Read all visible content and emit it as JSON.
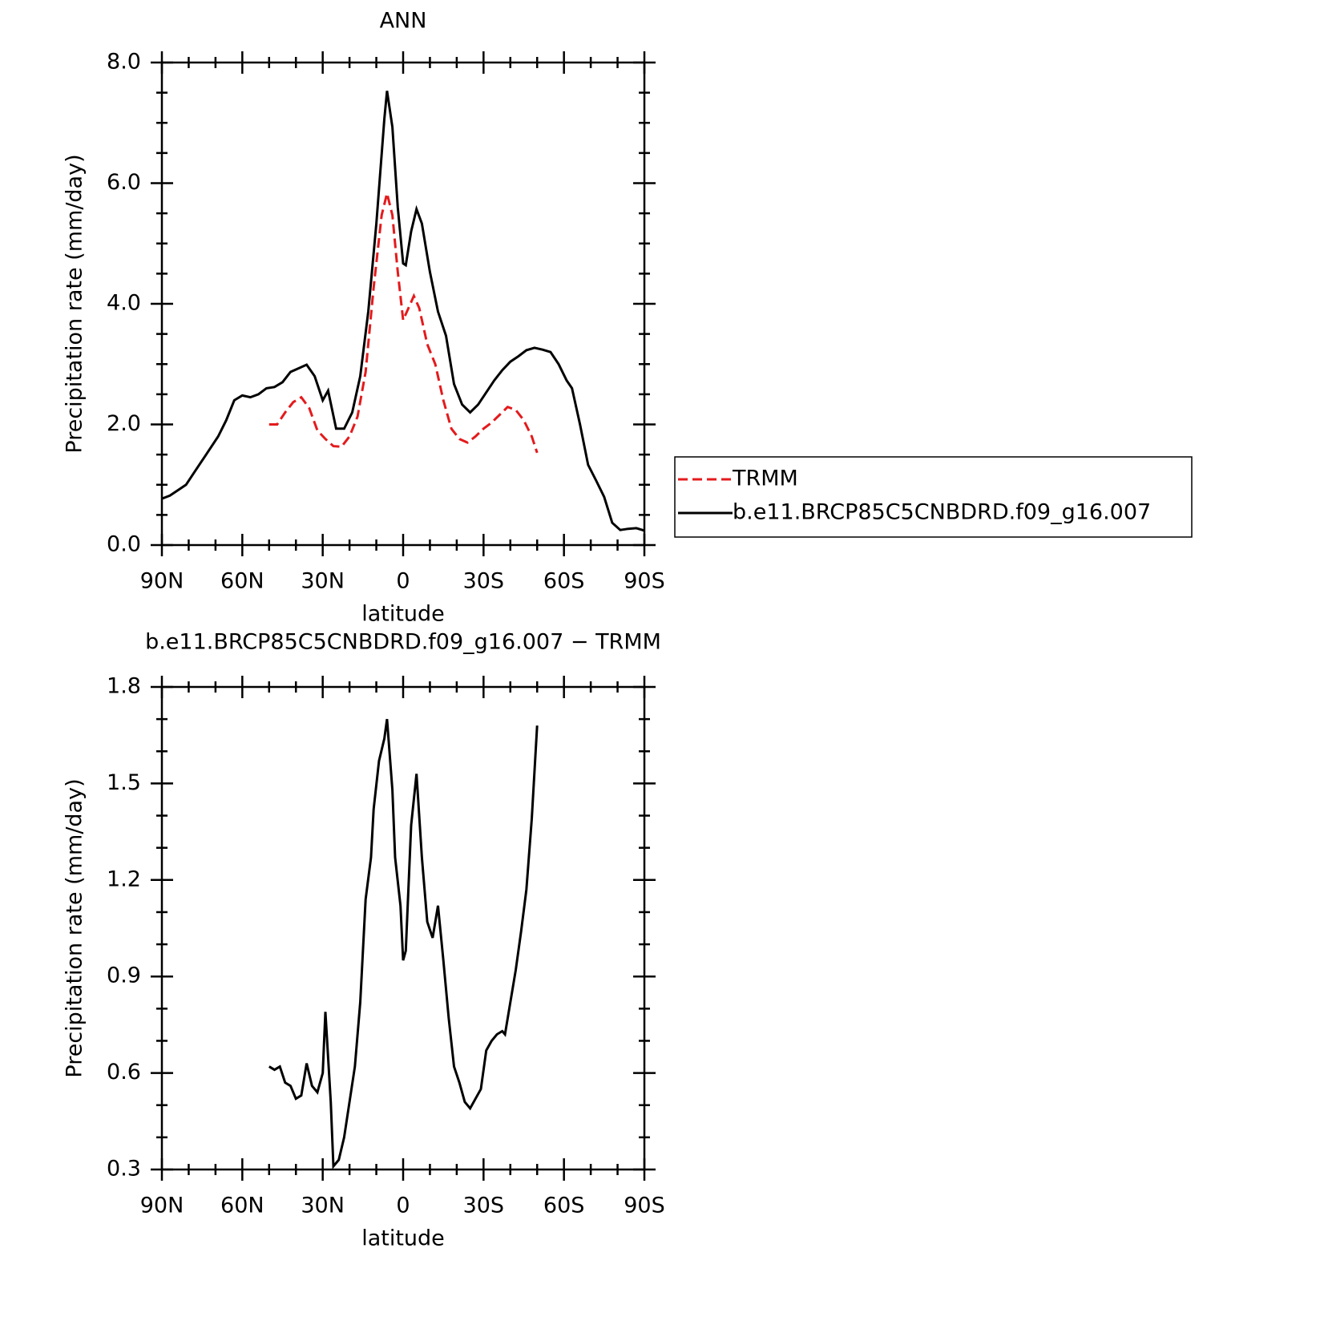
{
  "chart_data": [
    {
      "type": "line",
      "title": "ANN",
      "x_label": "latitude",
      "y_label": "Precipitation rate (mm/day)",
      "xlim": [
        90,
        -90
      ],
      "xticks": [
        {
          "value": 90,
          "label": "90N"
        },
        {
          "value": 60,
          "label": "60N"
        },
        {
          "value": 30,
          "label": "30N"
        },
        0,
        {
          "value": -30,
          "label": "30S"
        },
        {
          "value": -60,
          "label": "60S"
        },
        {
          "value": -90,
          "label": "90S"
        }
      ],
      "ylim": [
        0,
        8
      ],
      "yticks": [
        {
          "value": 0,
          "label": "0.0"
        },
        {
          "value": 2,
          "label": "2.0"
        },
        {
          "value": 4,
          "label": "4.0"
        },
        {
          "value": 6,
          "label": "6.0"
        },
        {
          "value": 8,
          "label": "8.0"
        }
      ],
      "legend": "right-outside",
      "series": [
        {
          "name": "TRMM",
          "color": "#e41a1c",
          "line_style": "dashed",
          "x": [
            50,
            47,
            44,
            41,
            38,
            35,
            32,
            29,
            26,
            23,
            20,
            17,
            14,
            11,
            8,
            6,
            4,
            2,
            0,
            -2,
            -4,
            -6,
            -9,
            -12,
            -15,
            -18,
            -21,
            -24,
            -27,
            -30,
            -33,
            -36,
            -39,
            -42,
            -45,
            -48,
            -50
          ],
          "values": [
            2.0,
            2.0,
            2.2,
            2.37,
            2.45,
            2.27,
            1.9,
            1.76,
            1.64,
            1.63,
            1.8,
            2.13,
            2.87,
            4.27,
            5.47,
            5.83,
            5.47,
            4.53,
            3.73,
            3.93,
            4.13,
            3.93,
            3.33,
            3.0,
            2.4,
            1.93,
            1.76,
            1.7,
            1.8,
            1.93,
            2.03,
            2.16,
            2.29,
            2.24,
            2.07,
            1.8,
            1.53
          ]
        },
        {
          "name": "b.e11.BRCP85C5CNBDRD.f09_g16.007",
          "color": "#000000",
          "line_style": "solid",
          "x": [
            90,
            87,
            84,
            81,
            78,
            75,
            72,
            69,
            66,
            63,
            60,
            57,
            54,
            51,
            48,
            45,
            42,
            39,
            36,
            33,
            30,
            28,
            25,
            22,
            19,
            16,
            13,
            10,
            7,
            6,
            4,
            2,
            0,
            -1,
            -3,
            -5,
            -7,
            -10,
            -13,
            -16,
            -19,
            -22,
            -25,
            -28,
            -31,
            -34,
            -37,
            -40,
            -43,
            -46,
            -49,
            -52,
            -55,
            -58,
            -61,
            -63,
            -66,
            -69,
            -72,
            -75,
            -78,
            -81,
            -84,
            -87,
            -90
          ],
          "values": [
            0.77,
            0.82,
            0.91,
            1.0,
            1.2,
            1.4,
            1.6,
            1.8,
            2.07,
            2.4,
            2.48,
            2.45,
            2.5,
            2.6,
            2.62,
            2.7,
            2.87,
            2.93,
            2.99,
            2.8,
            2.4,
            2.56,
            1.93,
            1.93,
            2.2,
            2.8,
            3.87,
            5.33,
            7.07,
            7.53,
            6.93,
            5.6,
            4.67,
            4.64,
            5.2,
            5.57,
            5.33,
            4.53,
            3.87,
            3.47,
            2.67,
            2.33,
            2.2,
            2.33,
            2.53,
            2.73,
            2.9,
            3.04,
            3.13,
            3.23,
            3.27,
            3.24,
            3.2,
            3.0,
            2.73,
            2.6,
            2.0,
            1.33,
            1.07,
            0.8,
            0.37,
            0.25,
            0.27,
            0.28,
            0.24
          ]
        }
      ]
    },
    {
      "type": "line",
      "title": "b.e11.BRCP85C5CNBDRD.f09_g16.007 − TRMM",
      "x_label": "latitude",
      "y_label": "Precipitation rate (mm/day)",
      "xlim": [
        90,
        -90
      ],
      "xticks": [
        {
          "value": 90,
          "label": "90N"
        },
        {
          "value": 60,
          "label": "60N"
        },
        {
          "value": 30,
          "label": "30N"
        },
        0,
        {
          "value": -30,
          "label": "30S"
        },
        {
          "value": -60,
          "label": "60S"
        },
        {
          "value": -90,
          "label": "90S"
        }
      ],
      "ylim": [
        0.3,
        1.8
      ],
      "yticks": [
        0.3,
        0.6,
        0.9,
        1.2,
        1.5,
        1.8
      ],
      "series": [
        {
          "color": "#000000",
          "line_style": "solid",
          "x": [
            50,
            48,
            46,
            44,
            42,
            40,
            38,
            36,
            34,
            32,
            30,
            29,
            27,
            26,
            24,
            22,
            20,
            18,
            16,
            14,
            12,
            11,
            9,
            7,
            6,
            4,
            3,
            1,
            0,
            -1,
            -3,
            -5,
            -7,
            -9,
            -11,
            -13,
            -15,
            -17,
            -19,
            -21,
            -23,
            -25,
            -27,
            -29,
            -31,
            -33,
            -35,
            -37,
            -38,
            -40,
            -42,
            -44,
            -46,
            -48,
            -50
          ],
          "values": [
            0.62,
            0.61,
            0.62,
            0.57,
            0.56,
            0.52,
            0.53,
            0.63,
            0.56,
            0.54,
            0.6,
            0.79,
            0.51,
            0.31,
            0.33,
            0.4,
            0.51,
            0.62,
            0.82,
            1.14,
            1.27,
            1.42,
            1.57,
            1.64,
            1.7,
            1.48,
            1.27,
            1.12,
            0.95,
            0.98,
            1.37,
            1.53,
            1.27,
            1.07,
            1.02,
            1.12,
            0.95,
            0.77,
            0.62,
            0.57,
            0.51,
            0.49,
            0.52,
            0.55,
            0.67,
            0.7,
            0.72,
            0.73,
            0.72,
            0.82,
            0.92,
            1.04,
            1.17,
            1.39,
            1.68
          ]
        }
      ]
    }
  ]
}
